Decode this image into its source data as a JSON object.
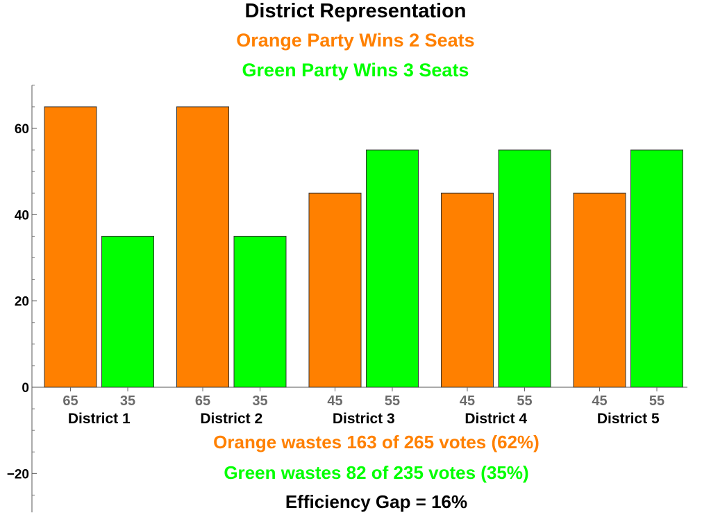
{
  "colors": {
    "orange": "#ff8000",
    "green": "#00ff00",
    "text_gray": "#6b6b6b"
  },
  "chart_data": {
    "type": "bar",
    "title": "District Representation",
    "subtitles": [
      "Orange Party Wins 2 Seats",
      "Green Party Wins 3 Seats"
    ],
    "categories": [
      "District 1",
      "District 2",
      "District 3",
      "District 4",
      "District 5"
    ],
    "series": [
      {
        "values": [
          65,
          65,
          45,
          45,
          45
        ],
        "value_labels": [
          "65",
          "65",
          "45",
          "45",
          "45"
        ]
      },
      {
        "values": [
          35,
          35,
          55,
          55,
          55
        ],
        "value_labels": [
          "35",
          "35",
          "55",
          "55",
          "55"
        ]
      }
    ],
    "y_ticks": [
      -20,
      0,
      20,
      40,
      60
    ],
    "y_tick_labels": [
      "−20",
      "0",
      "20",
      "40",
      "60"
    ],
    "ylim": [
      -29,
      70
    ],
    "grid": false,
    "annotations": [
      "Orange wastes 163 of 265 votes (62%)",
      "Green wastes 82 of 235 votes (35%)",
      "Efficiency Gap = 16%"
    ]
  }
}
